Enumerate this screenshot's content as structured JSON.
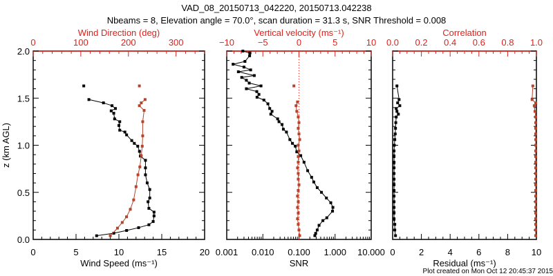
{
  "title": "VAD_08_20150713_042220, 20150713.042238",
  "subtitle": "Nbeams = 8, Elevation angle = 70.0°, scan duration = 31.3 s, SNR Threshold = 0.008",
  "footer": "Plot created on Mon Oct 12 20:45:37 2015",
  "colors": {
    "primary": "#000000",
    "secondary": "#b5442c",
    "axis_secondary": "#e0201a"
  },
  "chart_data": [
    {
      "type": "line",
      "ylabel": "z (km AGL)",
      "ylim": [
        0,
        2
      ],
      "yticks": [
        "0.0",
        "0.5",
        "1.0",
        "1.5",
        "2.0"
      ],
      "xlabel": "Wind Speed (ms⁻¹)",
      "xlim": [
        0,
        20
      ],
      "xticks": [
        "0",
        "5",
        "10",
        "15",
        "20"
      ],
      "x2label": "Wind Direction (deg)",
      "x2lim": [
        0,
        360
      ],
      "x2ticks": [
        "0",
        "100",
        "200",
        "300"
      ],
      "series": [
        {
          "name": "Wind Speed",
          "axis": "bottom",
          "color": "#000000",
          "points": [
            [
              0.039,
              7.4
            ],
            [
              0.066,
              9.4
            ],
            [
              0.095,
              10.9
            ],
            [
              0.125,
              12.3
            ],
            [
              0.156,
              13.5
            ],
            [
              0.19,
              14.0
            ],
            [
              0.25,
              14.1
            ],
            [
              0.29,
              14.1
            ],
            [
              0.33,
              13.5
            ],
            [
              0.4,
              13.4
            ],
            [
              0.44,
              13.6
            ],
            [
              0.53,
              13.6
            ],
            [
              0.6,
              13.3
            ],
            [
              0.686,
              13.1
            ],
            [
              0.76,
              13.1
            ],
            [
              0.84,
              13.1
            ],
            [
              0.885,
              12.5
            ],
            [
              0.935,
              12.4
            ],
            [
              0.99,
              12.2
            ],
            [
              1.02,
              11.8
            ],
            [
              1.05,
              11.5
            ],
            [
              1.11,
              10.9
            ],
            [
              1.14,
              10.7
            ],
            [
              1.16,
              10.1
            ],
            [
              1.21,
              10.0
            ],
            [
              1.25,
              10.1
            ],
            [
              1.28,
              9.5
            ],
            [
              1.34,
              9.4
            ],
            [
              1.365,
              9.1
            ],
            [
              1.39,
              9.6
            ],
            [
              1.42,
              9.2
            ],
            [
              1.45,
              8.2
            ],
            [
              1.485,
              6.5
            ]
          ],
          "isolated": [
            [
              1.63,
              5.9
            ]
          ]
        },
        {
          "name": "Wind Direction",
          "axis": "top",
          "color": "#b5442c",
          "points": [
            [
              0.039,
              162
            ],
            [
              0.12,
              177
            ],
            [
              0.18,
              187
            ],
            [
              0.24,
              196
            ],
            [
              0.32,
              204
            ],
            [
              0.42,
              211
            ],
            [
              0.56,
              216
            ],
            [
              0.686,
              220
            ],
            [
              0.77,
              224
            ],
            [
              0.89,
              227
            ],
            [
              0.99,
              229
            ],
            [
              1.1,
              230
            ],
            [
              1.25,
              230
            ],
            [
              1.37,
              233
            ],
            [
              1.42,
              223
            ],
            [
              1.45,
              227
            ],
            [
              1.485,
              235
            ]
          ],
          "isolated": [
            [
              1.63,
              223
            ]
          ]
        }
      ]
    },
    {
      "type": "line",
      "ylim": [
        0,
        2
      ],
      "xlabel": "SNR",
      "xscale": "log",
      "xlim": [
        0.001,
        10
      ],
      "xticks": [
        "0.001",
        "0.010",
        "0.100",
        "1.000",
        "10.000"
      ],
      "x2label": "Vertical velocity (ms⁻¹)",
      "x2lim": [
        -10,
        10
      ],
      "x2ticks": [
        "−10",
        "−5",
        "0",
        "5",
        "10"
      ],
      "series": [
        {
          "name": "SNR",
          "axis": "bottom",
          "color": "#000000",
          "points": [
            [
              0.04,
              0.275
            ],
            [
              0.064,
              0.29
            ],
            [
              0.1,
              0.32
            ],
            [
              0.15,
              0.36
            ],
            [
              0.2,
              0.46
            ],
            [
              0.23,
              0.59
            ],
            [
              0.3,
              0.85
            ],
            [
              0.34,
              0.87
            ],
            [
              0.39,
              0.76
            ],
            [
              0.44,
              0.575
            ],
            [
              0.5,
              0.42
            ],
            [
              0.55,
              0.32
            ],
            [
              0.61,
              0.257
            ],
            [
              0.66,
              0.224
            ],
            [
              0.73,
              0.174
            ],
            [
              0.82,
              0.138
            ],
            [
              0.89,
              0.112
            ],
            [
              0.93,
              0.087
            ],
            [
              0.99,
              0.079
            ],
            [
              1.02,
              0.066
            ],
            [
              1.06,
              0.056
            ],
            [
              1.14,
              0.045
            ],
            [
              1.17,
              0.037
            ],
            [
              1.22,
              0.034
            ],
            [
              1.25,
              0.028
            ],
            [
              1.28,
              0.0257
            ],
            [
              1.33,
              0.0166
            ],
            [
              1.36,
              0.018
            ],
            [
              1.39,
              0.0155
            ],
            [
              1.44,
              0.0138
            ],
            [
              1.48,
              0.0107
            ],
            [
              1.51,
              0.0069
            ],
            [
              1.54,
              0.0078
            ],
            [
              1.57,
              0.0068
            ],
            [
              1.6,
              0.0035
            ],
            [
              1.63,
              0.0089
            ],
            [
              1.66,
              0.0042
            ],
            [
              1.69,
              0.0035
            ],
            [
              1.72,
              0.0026
            ],
            [
              1.74,
              0.0058
            ],
            [
              1.78,
              0.0021
            ],
            [
              1.8,
              0.0046
            ],
            [
              1.83,
              0.003
            ],
            [
              1.86,
              0.0015
            ],
            [
              1.89,
              0.0032
            ],
            [
              1.95,
              0.0043
            ],
            [
              1.98,
              0.0044
            ],
            [
              2.0,
              0.0028
            ]
          ]
        },
        {
          "name": "Vertical velocity",
          "axis": "top",
          "color": "#b5442c",
          "points": [
            [
              0.04,
              0.1
            ],
            [
              0.1,
              0.0
            ],
            [
              0.16,
              -0.1
            ],
            [
              0.22,
              -0.2
            ],
            [
              0.28,
              -0.1
            ],
            [
              0.34,
              -0.2
            ],
            [
              0.4,
              -0.1
            ],
            [
              0.46,
              -0.2
            ],
            [
              0.52,
              -0.1
            ],
            [
              0.58,
              0.0
            ],
            [
              0.64,
              -0.1
            ],
            [
              0.7,
              -0.1
            ],
            [
              0.76,
              -0.2
            ],
            [
              0.82,
              -0.1
            ],
            [
              0.88,
              -0.1
            ],
            [
              0.94,
              0.0
            ],
            [
              1.0,
              -0.1
            ],
            [
              1.06,
              0.1
            ],
            [
              1.12,
              0.0
            ],
            [
              1.18,
              -0.1
            ],
            [
              1.24,
              0.0
            ],
            [
              1.3,
              -0.1
            ],
            [
              1.36,
              -0.3
            ],
            [
              1.42,
              -0.4
            ],
            [
              1.46,
              -0.2
            ]
          ],
          "isolated": [
            [
              1.63,
              -0.7
            ]
          ]
        }
      ]
    },
    {
      "type": "scatter",
      "ylim": [
        0,
        2
      ],
      "xlabel": "Residual (ms⁻¹)",
      "xlim": [
        0,
        10
      ],
      "xticks": [
        "0",
        "2",
        "4",
        "6",
        "8",
        "10"
      ],
      "x2label": "Correlation",
      "x2lim": [
        0,
        1
      ],
      "x2ticks": [
        "0.0",
        "0.2",
        "0.4",
        "0.6",
        "0.8",
        "1.0"
      ],
      "series": [
        {
          "name": "Residual",
          "axis": "bottom",
          "color": "#000000",
          "points": [
            [
              0.04,
              0.2
            ],
            [
              0.1,
              0.15
            ],
            [
              0.16,
              0.15
            ],
            [
              0.22,
              0.1
            ],
            [
              0.28,
              0.1
            ],
            [
              0.34,
              0.1
            ],
            [
              0.4,
              0.1
            ],
            [
              0.46,
              0.1
            ],
            [
              0.52,
              0.1
            ],
            [
              0.58,
              0.1
            ],
            [
              0.64,
              0.1
            ],
            [
              0.7,
              0.1
            ],
            [
              0.76,
              0.1
            ],
            [
              0.82,
              0.1
            ],
            [
              0.88,
              0.1
            ],
            [
              0.94,
              0.1
            ],
            [
              1.0,
              0.12
            ],
            [
              1.06,
              0.15
            ],
            [
              1.12,
              0.18
            ],
            [
              1.18,
              0.2
            ],
            [
              1.24,
              0.22
            ],
            [
              1.3,
              0.25
            ],
            [
              1.33,
              0.4
            ],
            [
              1.36,
              0.3
            ],
            [
              1.39,
              0.25
            ],
            [
              1.42,
              0.5
            ],
            [
              1.45,
              0.35
            ],
            [
              1.485,
              0.45
            ],
            [
              1.63,
              0.3
            ]
          ]
        },
        {
          "name": "Correlation",
          "axis": "top",
          "color": "#b5442c",
          "points": [
            [
              0.04,
              0.995
            ],
            [
              0.1,
              0.995
            ],
            [
              0.16,
              0.995
            ],
            [
              0.22,
              0.995
            ],
            [
              0.28,
              0.995
            ],
            [
              0.34,
              0.995
            ],
            [
              0.4,
              0.995
            ],
            [
              0.46,
              0.995
            ],
            [
              0.52,
              0.995
            ],
            [
              0.58,
              0.995
            ],
            [
              0.64,
              0.995
            ],
            [
              0.7,
              0.995
            ],
            [
              0.76,
              0.995
            ],
            [
              0.82,
              0.995
            ],
            [
              0.88,
              0.995
            ],
            [
              0.94,
              0.995
            ],
            [
              1.0,
              0.995
            ],
            [
              1.06,
              0.995
            ],
            [
              1.12,
              0.995
            ],
            [
              1.18,
              0.995
            ],
            [
              1.24,
              0.995
            ],
            [
              1.3,
              0.995
            ],
            [
              1.36,
              0.99
            ],
            [
              1.42,
              0.985
            ],
            [
              1.45,
              0.995
            ],
            [
              1.485,
              0.97
            ],
            [
              1.63,
              0.975
            ]
          ]
        }
      ]
    }
  ]
}
